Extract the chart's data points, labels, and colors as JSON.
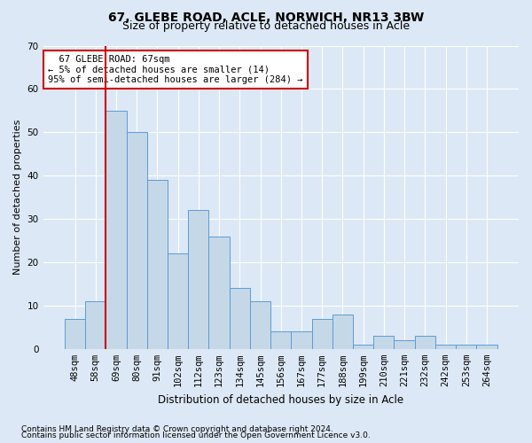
{
  "title1": "67, GLEBE ROAD, ACLE, NORWICH, NR13 3BW",
  "title2": "Size of property relative to detached houses in Acle",
  "xlabel": "Distribution of detached houses by size in Acle",
  "ylabel": "Number of detached properties",
  "footnote1": "Contains HM Land Registry data © Crown copyright and database right 2024.",
  "footnote2": "Contains public sector information licensed under the Open Government Licence v3.0.",
  "annotation_line1": "  67 GLEBE ROAD: 67sqm",
  "annotation_line2": "← 5% of detached houses are smaller (14)",
  "annotation_line3": "95% of semi-detached houses are larger (284) →",
  "bar_labels": [
    "48sqm",
    "58sqm",
    "69sqm",
    "80sqm",
    "91sqm",
    "102sqm",
    "112sqm",
    "123sqm",
    "134sqm",
    "145sqm",
    "156sqm",
    "167sqm",
    "177sqm",
    "188sqm",
    "199sqm",
    "210sqm",
    "221sqm",
    "232sqm",
    "242sqm",
    "253sqm",
    "264sqm"
  ],
  "bar_values": [
    7,
    11,
    55,
    50,
    39,
    22,
    32,
    26,
    14,
    11,
    4,
    4,
    7,
    8,
    1,
    3,
    2,
    3,
    1,
    1,
    1
  ],
  "bar_color": "#c5d8e8",
  "bar_edge_color": "#5b9bd5",
  "vline_bar_index": 2,
  "vline_color": "#cc0000",
  "annotation_box_edge": "#cc0000",
  "annotation_box_face": "#ffffff",
  "ylim": [
    0,
    70
  ],
  "yticks": [
    0,
    10,
    20,
    30,
    40,
    50,
    60,
    70
  ],
  "background_color": "#dce8f5",
  "plot_bg_color": "#dce8f5",
  "grid_color": "#ffffff",
  "title1_fontsize": 10,
  "title2_fontsize": 9,
  "xlabel_fontsize": 8.5,
  "ylabel_fontsize": 8,
  "tick_fontsize": 7.5,
  "footnote_fontsize": 6.5,
  "annotation_fontsize": 7.5
}
